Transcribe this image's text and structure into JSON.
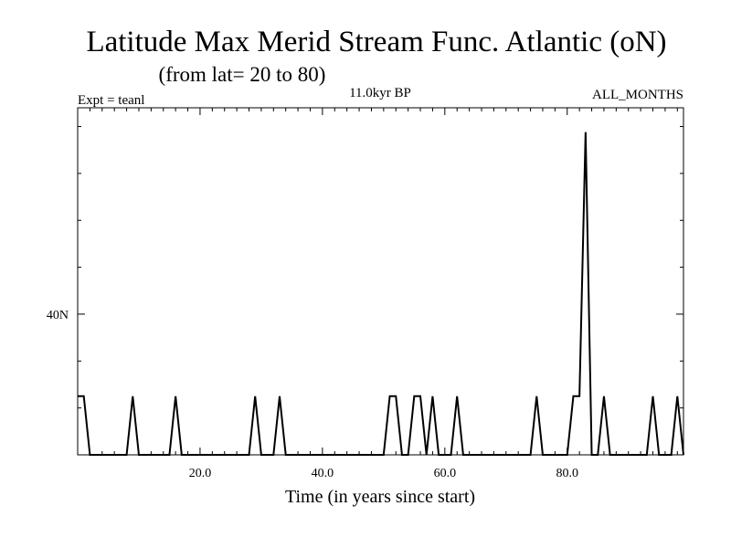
{
  "header": {
    "title": "Latitude Max Merid Stream Func. Atlantic (oN)",
    "subtitle": "(from lat= 20 to 80)",
    "experiment": "Expt = teanl",
    "time_label": "11.0kyr BP",
    "months_label": "ALL_MONTHS"
  },
  "chart_data": {
    "type": "line",
    "title": "Latitude Max Merid Stream Func. Atlantic (oN)",
    "subtitle": "(from lat= 20 to 80)",
    "xlabel": "Time (in years since start)",
    "ylabel": "",
    "xlim": [
      0,
      99
    ],
    "ylim": [
      25,
      62
    ],
    "x_ticks": [
      {
        "value": 20,
        "label": "20.0"
      },
      {
        "value": 40,
        "label": "40.0"
      },
      {
        "value": 60,
        "label": "60.0"
      },
      {
        "value": 80,
        "label": "80.0"
      }
    ],
    "x_minor_step": 2,
    "y_ticks": [
      {
        "value": 40,
        "label": "40N"
      }
    ],
    "y_minor_step": 5,
    "grid": false,
    "line_color": "#000000",
    "x": [
      0,
      1,
      2,
      3,
      4,
      5,
      6,
      7,
      8,
      9,
      10,
      11,
      12,
      13,
      14,
      15,
      16,
      17,
      18,
      19,
      20,
      21,
      22,
      23,
      24,
      25,
      26,
      27,
      28,
      29,
      30,
      31,
      32,
      33,
      34,
      35,
      36,
      37,
      38,
      39,
      40,
      41,
      42,
      43,
      44,
      45,
      46,
      47,
      48,
      49,
      50,
      51,
      52,
      53,
      54,
      55,
      56,
      57,
      58,
      59,
      60,
      61,
      62,
      63,
      64,
      65,
      66,
      67,
      68,
      69,
      70,
      71,
      72,
      73,
      74,
      75,
      76,
      77,
      78,
      79,
      80,
      81,
      82,
      83,
      84,
      85,
      86,
      87,
      88,
      89,
      90,
      91,
      92,
      93,
      94,
      95,
      96,
      97,
      98,
      99
    ],
    "y": [
      31.25,
      31.25,
      25,
      25,
      25,
      25,
      25,
      25,
      25,
      31.25,
      25,
      25,
      25,
      25,
      25,
      25,
      31.25,
      25,
      25,
      25,
      25,
      25,
      25,
      25,
      25,
      25,
      25,
      25,
      25,
      31.25,
      25,
      25,
      25,
      31.25,
      25,
      25,
      25,
      25,
      25,
      25,
      25,
      25,
      25,
      25,
      25,
      25,
      25,
      25,
      25,
      25,
      25,
      31.25,
      31.25,
      25,
      25,
      31.25,
      31.25,
      25,
      31.25,
      25,
      25,
      25,
      31.25,
      25,
      25,
      25,
      25,
      25,
      25,
      25,
      25,
      25,
      25,
      25,
      25,
      31.25,
      25,
      25,
      25,
      25,
      25,
      31.25,
      31.25,
      59.4,
      25,
      25,
      31.25,
      25,
      25,
      25,
      25,
      25,
      25,
      25,
      31.25,
      25,
      25,
      25,
      31.25,
      25
    ]
  }
}
